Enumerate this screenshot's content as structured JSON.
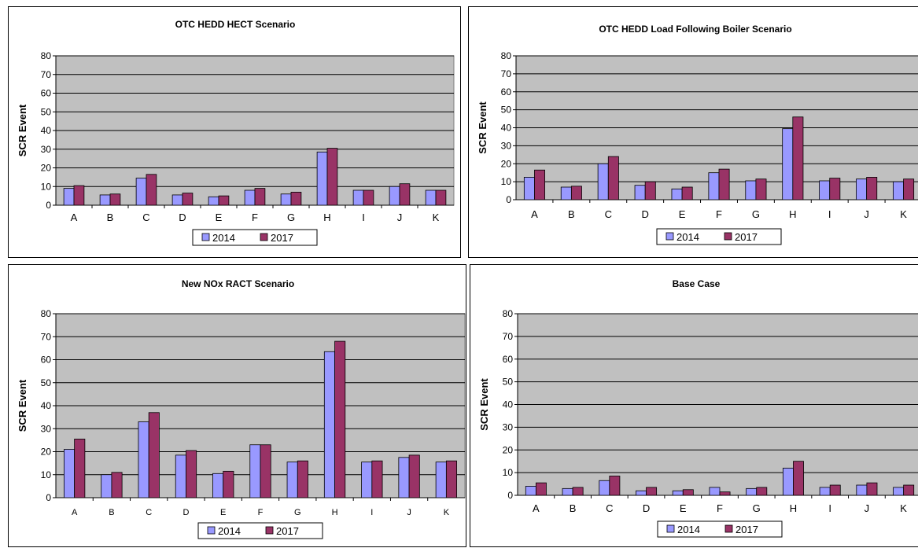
{
  "chart_data": [
    {
      "type": "bar",
      "title": "OTC HEDD HECT Scenario",
      "ylabel": "SCR Event",
      "xlabel": "",
      "ylim": [
        0,
        80
      ],
      "yticks": [
        "0",
        "10",
        "20",
        "30",
        "40",
        "50",
        "60",
        "70",
        "80"
      ],
      "categories": [
        "A",
        "B",
        "C",
        "D",
        "E",
        "F",
        "G",
        "H",
        "I",
        "J",
        "K"
      ],
      "series": [
        {
          "name": "2014",
          "color": "#9999ff",
          "values": [
            9,
            5.5,
            14.5,
            5.5,
            4.5,
            8,
            6,
            28.5,
            8,
            10,
            8
          ]
        },
        {
          "name": "2017",
          "color": "#993366",
          "values": [
            10.5,
            6,
            16.5,
            6.5,
            5,
            9,
            7,
            30.5,
            8,
            11.5,
            8
          ]
        }
      ],
      "grid": true,
      "plot_bg": "#c0c0c0",
      "legend_position": "bottom"
    },
    {
      "type": "bar",
      "title": "OTC HEDD Load Following Boiler Scenario",
      "ylabel": "SCR Event",
      "xlabel": "",
      "ylim": [
        0,
        80
      ],
      "yticks": [
        "0",
        "10",
        "20",
        "30",
        "40",
        "50",
        "60",
        "70",
        "80"
      ],
      "categories": [
        "A",
        "B",
        "C",
        "D",
        "E",
        "F",
        "G",
        "H",
        "I",
        "J",
        "K"
      ],
      "series": [
        {
          "name": "2014",
          "color": "#9999ff",
          "values": [
            12.5,
            7,
            20,
            8,
            6,
            15,
            10.5,
            39.5,
            10.5,
            11.5,
            10
          ]
        },
        {
          "name": "2017",
          "color": "#993366",
          "values": [
            16.5,
            7.5,
            24,
            10,
            7,
            17,
            11.5,
            46,
            12,
            12.5,
            11.5
          ]
        }
      ],
      "grid": true,
      "plot_bg": "#c0c0c0",
      "legend_position": "bottom"
    },
    {
      "type": "bar",
      "title": "New NOx RACT Scenario",
      "ylabel": "SCR Event",
      "xlabel": "",
      "ylim": [
        0,
        80
      ],
      "yticks": [
        "0",
        "10",
        "20",
        "30",
        "40",
        "50",
        "60",
        "70",
        "80"
      ],
      "categories": [
        "A",
        "B",
        "C",
        "D",
        "E",
        "F",
        "G",
        "H",
        "I",
        "J",
        "K"
      ],
      "series": [
        {
          "name": "2014",
          "color": "#9999ff",
          "values": [
            21,
            10,
            33,
            18.5,
            10.5,
            23,
            15.5,
            63.5,
            15.5,
            17.5,
            15.5
          ]
        },
        {
          "name": "2017",
          "color": "#993366",
          "values": [
            25.5,
            11,
            37,
            20.5,
            11.5,
            23,
            16,
            68,
            16,
            18.5,
            16
          ]
        }
      ],
      "grid": true,
      "plot_bg": "#c0c0c0",
      "legend_position": "bottom"
    },
    {
      "type": "bar",
      "title": "Base Case",
      "ylabel": "SCR Event",
      "xlabel": "",
      "ylim": [
        0,
        80
      ],
      "yticks": [
        "0",
        "10",
        "20",
        "30",
        "40",
        "50",
        "60",
        "70",
        "80"
      ],
      "categories": [
        "A",
        "B",
        "C",
        "D",
        "E",
        "F",
        "G",
        "H",
        "I",
        "J",
        "K"
      ],
      "series": [
        {
          "name": "2014",
          "color": "#9999ff",
          "values": [
            4,
            3,
            6.5,
            2,
            2,
            3.5,
            3,
            12,
            3.5,
            4.5,
            3.5
          ]
        },
        {
          "name": "2017",
          "color": "#993366",
          "values": [
            5.5,
            3.5,
            8.5,
            3.5,
            2.5,
            1.5,
            3.5,
            15,
            4.5,
            5.5,
            4.5
          ]
        }
      ],
      "grid": true,
      "plot_bg": "#c0c0c0",
      "legend_position": "bottom"
    }
  ]
}
